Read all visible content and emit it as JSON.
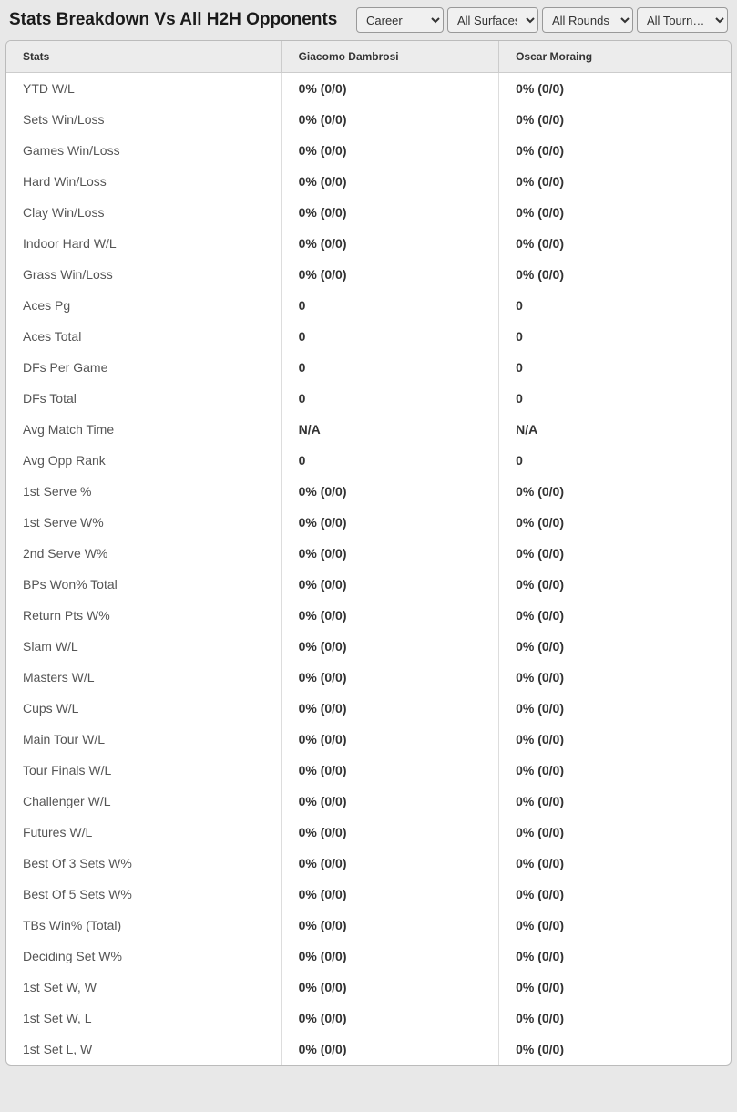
{
  "header": {
    "title": "Stats Breakdown Vs All H2H Opponents"
  },
  "filters": {
    "period": "Career",
    "surface": "All Surfaces",
    "round": "All Rounds",
    "tournament": "All Tourn…"
  },
  "table": {
    "columns": {
      "stats": "Stats",
      "player1": "Giacomo Dambrosi",
      "player2": "Oscar Moraing"
    },
    "rows": [
      {
        "stat": "YTD W/L",
        "p1": "0% (0/0)",
        "p2": "0% (0/0)"
      },
      {
        "stat": "Sets Win/Loss",
        "p1": "0% (0/0)",
        "p2": "0% (0/0)"
      },
      {
        "stat": "Games Win/Loss",
        "p1": "0% (0/0)",
        "p2": "0% (0/0)"
      },
      {
        "stat": "Hard Win/Loss",
        "p1": "0% (0/0)",
        "p2": "0% (0/0)"
      },
      {
        "stat": "Clay Win/Loss",
        "p1": "0% (0/0)",
        "p2": "0% (0/0)"
      },
      {
        "stat": "Indoor Hard W/L",
        "p1": "0% (0/0)",
        "p2": "0% (0/0)"
      },
      {
        "stat": "Grass Win/Loss",
        "p1": "0% (0/0)",
        "p2": "0% (0/0)"
      },
      {
        "stat": "Aces Pg",
        "p1": "0",
        "p2": "0"
      },
      {
        "stat": "Aces Total",
        "p1": "0",
        "p2": "0"
      },
      {
        "stat": "DFs Per Game",
        "p1": "0",
        "p2": "0"
      },
      {
        "stat": "DFs Total",
        "p1": "0",
        "p2": "0"
      },
      {
        "stat": "Avg Match Time",
        "p1": "N/A",
        "p2": "N/A"
      },
      {
        "stat": "Avg Opp Rank",
        "p1": "0",
        "p2": "0"
      },
      {
        "stat": "1st Serve %",
        "p1": "0% (0/0)",
        "p2": "0% (0/0)"
      },
      {
        "stat": "1st Serve W%",
        "p1": "0% (0/0)",
        "p2": "0% (0/0)"
      },
      {
        "stat": "2nd Serve W%",
        "p1": "0% (0/0)",
        "p2": "0% (0/0)"
      },
      {
        "stat": "BPs Won% Total",
        "p1": "0% (0/0)",
        "p2": "0% (0/0)"
      },
      {
        "stat": "Return Pts W%",
        "p1": "0% (0/0)",
        "p2": "0% (0/0)"
      },
      {
        "stat": "Slam W/L",
        "p1": "0% (0/0)",
        "p2": "0% (0/0)"
      },
      {
        "stat": "Masters W/L",
        "p1": "0% (0/0)",
        "p2": "0% (0/0)"
      },
      {
        "stat": "Cups W/L",
        "p1": "0% (0/0)",
        "p2": "0% (0/0)"
      },
      {
        "stat": "Main Tour W/L",
        "p1": "0% (0/0)",
        "p2": "0% (0/0)"
      },
      {
        "stat": "Tour Finals W/L",
        "p1": "0% (0/0)",
        "p2": "0% (0/0)"
      },
      {
        "stat": "Challenger W/L",
        "p1": "0% (0/0)",
        "p2": "0% (0/0)"
      },
      {
        "stat": "Futures W/L",
        "p1": "0% (0/0)",
        "p2": "0% (0/0)"
      },
      {
        "stat": "Best Of 3 Sets W%",
        "p1": "0% (0/0)",
        "p2": "0% (0/0)"
      },
      {
        "stat": "Best Of 5 Sets W%",
        "p1": "0% (0/0)",
        "p2": "0% (0/0)"
      },
      {
        "stat": "TBs Win% (Total)",
        "p1": "0% (0/0)",
        "p2": "0% (0/0)"
      },
      {
        "stat": "Deciding Set W%",
        "p1": "0% (0/0)",
        "p2": "0% (0/0)"
      },
      {
        "stat": "1st Set W, W",
        "p1": "0% (0/0)",
        "p2": "0% (0/0)"
      },
      {
        "stat": "1st Set W, L",
        "p1": "0% (0/0)",
        "p2": "0% (0/0)"
      },
      {
        "stat": "1st Set L, W",
        "p1": "0% (0/0)",
        "p2": "0% (0/0)"
      }
    ]
  },
  "styling": {
    "background_color": "#e8e8e8",
    "table_background": "#ffffff",
    "header_row_bg": "#ececec",
    "border_color": "#bbbbbb",
    "cell_divider": "#dddddd",
    "title_color": "#1a1a1a",
    "stat_label_color": "#555555",
    "value_color": "#333333",
    "title_fontsize": 19,
    "header_fontsize": 12,
    "cell_fontsize": 14
  }
}
